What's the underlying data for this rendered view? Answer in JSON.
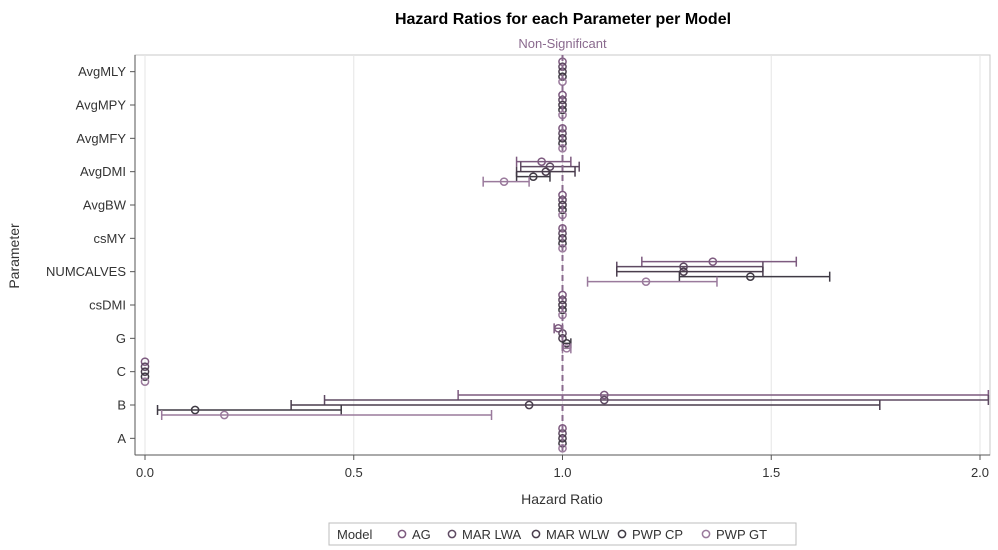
{
  "chart_data": {
    "type": "scatter",
    "title": "Hazard Ratios for each Parameter per Model",
    "reference_line": {
      "x": 1.0,
      "label": "Non-Significant",
      "color": "#8a6a8e"
    },
    "xlabel": "Hazard Ratio",
    "ylabel": "Parameter",
    "xlim": [
      0.0,
      2.02
    ],
    "xticks": [
      {
        "value": 0.0,
        "label": "0.0"
      },
      {
        "value": 0.5,
        "label": "0.5"
      },
      {
        "value": 1.0,
        "label": "1.0"
      },
      {
        "value": 1.5,
        "label": "1.5"
      },
      {
        "value": 2.0,
        "label": "2.0"
      }
    ],
    "categories": [
      "AvgMLY",
      "AvgMPY",
      "AvgMFY",
      "AvgDMI",
      "AvgBW",
      "csMY",
      "NUMCALVES",
      "csDMI",
      "G",
      "C",
      "B",
      "A"
    ],
    "legend": {
      "title": "Model",
      "placement": "bottom"
    },
    "series": [
      {
        "name": "AG",
        "color": "#7d5a7f",
        "points": [
          {
            "category": "AvgMLY",
            "x": 1.0,
            "lo": null,
            "hi": null
          },
          {
            "category": "AvgMPY",
            "x": 1.0,
            "lo": null,
            "hi": null
          },
          {
            "category": "AvgMFY",
            "x": 1.0,
            "lo": null,
            "hi": null
          },
          {
            "category": "AvgDMI",
            "x": 0.95,
            "lo": 0.89,
            "hi": 1.02
          },
          {
            "category": "AvgBW",
            "x": 1.0,
            "lo": null,
            "hi": null
          },
          {
            "category": "csMY",
            "x": 1.0,
            "lo": null,
            "hi": null
          },
          {
            "category": "NUMCALVES",
            "x": 1.36,
            "lo": 1.19,
            "hi": 1.56
          },
          {
            "category": "csDMI",
            "x": 1.0,
            "lo": null,
            "hi": null
          },
          {
            "category": "G",
            "x": 0.99,
            "lo": 0.98,
            "hi": 1.0
          },
          {
            "category": "C",
            "x": 0.0,
            "lo": null,
            "hi": null
          },
          {
            "category": "B",
            "x": 1.1,
            "lo": 0.75,
            "hi": 2.02
          },
          {
            "category": "A",
            "x": 1.0,
            "lo": null,
            "hi": null
          }
        ]
      },
      {
        "name": "MAR LWA",
        "color": "#5e4a62",
        "points": [
          {
            "category": "AvgMLY",
            "x": 1.0,
            "lo": null,
            "hi": null
          },
          {
            "category": "AvgMPY",
            "x": 1.0,
            "lo": null,
            "hi": null
          },
          {
            "category": "AvgMFY",
            "x": 1.0,
            "lo": null,
            "hi": null
          },
          {
            "category": "AvgDMI",
            "x": 0.97,
            "lo": 0.9,
            "hi": 1.04
          },
          {
            "category": "AvgBW",
            "x": 1.0,
            "lo": null,
            "hi": null
          },
          {
            "category": "csMY",
            "x": 1.0,
            "lo": null,
            "hi": null
          },
          {
            "category": "NUMCALVES",
            "x": 1.29,
            "lo": 1.13,
            "hi": 1.48
          },
          {
            "category": "csDMI",
            "x": 1.0,
            "lo": null,
            "hi": null
          },
          {
            "category": "G",
            "x": 1.0,
            "lo": null,
            "hi": null
          },
          {
            "category": "C",
            "x": 0.0,
            "lo": null,
            "hi": null
          },
          {
            "category": "B",
            "x": 1.1,
            "lo": 0.43,
            "hi": 2.02
          },
          {
            "category": "A",
            "x": 1.0,
            "lo": null,
            "hi": null
          }
        ]
      },
      {
        "name": "MAR WLW",
        "color": "#4a3d4d",
        "points": [
          {
            "category": "AvgMLY",
            "x": 1.0,
            "lo": null,
            "hi": null
          },
          {
            "category": "AvgMPY",
            "x": 1.0,
            "lo": null,
            "hi": null
          },
          {
            "category": "AvgMFY",
            "x": 1.0,
            "lo": null,
            "hi": null
          },
          {
            "category": "AvgDMI",
            "x": 0.96,
            "lo": 0.89,
            "hi": 1.03
          },
          {
            "category": "AvgBW",
            "x": 1.0,
            "lo": null,
            "hi": null
          },
          {
            "category": "csMY",
            "x": 1.0,
            "lo": null,
            "hi": null
          },
          {
            "category": "NUMCALVES",
            "x": 1.29,
            "lo": 1.13,
            "hi": 1.48
          },
          {
            "category": "csDMI",
            "x": 1.0,
            "lo": null,
            "hi": null
          },
          {
            "category": "G",
            "x": 1.0,
            "lo": null,
            "hi": null
          },
          {
            "category": "C",
            "x": 0.0,
            "lo": null,
            "hi": null
          },
          {
            "category": "B",
            "x": 0.92,
            "lo": 0.35,
            "hi": 1.76
          },
          {
            "category": "A",
            "x": 1.0,
            "lo": null,
            "hi": null
          }
        ]
      },
      {
        "name": "PWP CP",
        "color": "#3f3a44",
        "points": [
          {
            "category": "AvgMLY",
            "x": 1.0,
            "lo": null,
            "hi": null
          },
          {
            "category": "AvgMPY",
            "x": 1.0,
            "lo": null,
            "hi": null
          },
          {
            "category": "AvgMFY",
            "x": 1.0,
            "lo": null,
            "hi": null
          },
          {
            "category": "AvgDMI",
            "x": 0.93,
            "lo": 0.89,
            "hi": 0.97
          },
          {
            "category": "AvgBW",
            "x": 1.0,
            "lo": null,
            "hi": null
          },
          {
            "category": "csMY",
            "x": 1.0,
            "lo": null,
            "hi": null
          },
          {
            "category": "NUMCALVES",
            "x": 1.45,
            "lo": 1.28,
            "hi": 1.64
          },
          {
            "category": "csDMI",
            "x": 1.0,
            "lo": null,
            "hi": null
          },
          {
            "category": "G",
            "x": 1.01,
            "lo": 1.0,
            "hi": 1.02
          },
          {
            "category": "C",
            "x": 0.0,
            "lo": null,
            "hi": null
          },
          {
            "category": "B",
            "x": 0.12,
            "lo": 0.03,
            "hi": 0.47
          },
          {
            "category": "A",
            "x": 1.0,
            "lo": null,
            "hi": null
          }
        ]
      },
      {
        "name": "PWP GT",
        "color": "#9a7a9c",
        "points": [
          {
            "category": "AvgMLY",
            "x": 1.0,
            "lo": null,
            "hi": null
          },
          {
            "category": "AvgMPY",
            "x": 1.0,
            "lo": null,
            "hi": null
          },
          {
            "category": "AvgMFY",
            "x": 1.0,
            "lo": null,
            "hi": null
          },
          {
            "category": "AvgDMI",
            "x": 0.86,
            "lo": 0.81,
            "hi": 0.92
          },
          {
            "category": "AvgBW",
            "x": 1.0,
            "lo": null,
            "hi": null
          },
          {
            "category": "csMY",
            "x": 1.0,
            "lo": null,
            "hi": null
          },
          {
            "category": "NUMCALVES",
            "x": 1.2,
            "lo": 1.06,
            "hi": 1.37
          },
          {
            "category": "csDMI",
            "x": 1.0,
            "lo": null,
            "hi": null
          },
          {
            "category": "G",
            "x": 1.01,
            "lo": 1.0,
            "hi": 1.02
          },
          {
            "category": "C",
            "x": 0.0,
            "lo": null,
            "hi": null
          },
          {
            "category": "B",
            "x": 0.19,
            "lo": 0.04,
            "hi": 0.83
          },
          {
            "category": "A",
            "x": 1.0,
            "lo": null,
            "hi": null
          }
        ]
      }
    ]
  }
}
